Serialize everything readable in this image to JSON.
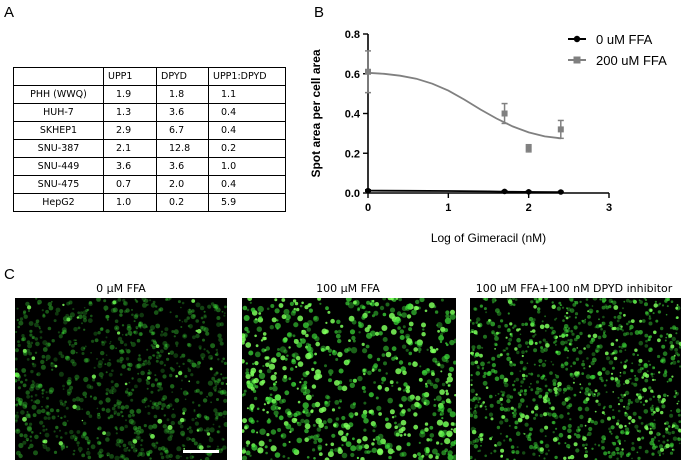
{
  "panels": {
    "a": "A",
    "b": "B",
    "c": "C"
  },
  "table": {
    "columns": [
      "UPP1",
      "DPYD",
      "UPP1:DPYD"
    ],
    "rows": [
      {
        "name": "PHH (WWQ)",
        "values": [
          "1.9",
          "1.8",
          "1.1"
        ]
      },
      {
        "name": "HUH-7",
        "values": [
          "1.3",
          "3.6",
          "0.4"
        ]
      },
      {
        "name": "SKHEP1",
        "values": [
          "2.9",
          "6.7",
          "0.4"
        ]
      },
      {
        "name": "SNU-387",
        "values": [
          "2.1",
          "12.8",
          "0.2"
        ]
      },
      {
        "name": "SNU-449",
        "values": [
          "3.6",
          "3.6",
          "1.0"
        ]
      },
      {
        "name": "SNU-475",
        "values": [
          "0.7",
          "2.0",
          "0.4"
        ]
      },
      {
        "name": "HepG2",
        "values": [
          "1.0",
          "0.2",
          "5.9"
        ]
      }
    ]
  },
  "chart_data": {
    "type": "scatter",
    "xlabel": "Log of Gimeracil (nM)",
    "ylabel": "Spot area per cell area",
    "xlim": [
      0,
      3
    ],
    "ylim": [
      0,
      0.8
    ],
    "x_ticks": [
      "0",
      "1",
      "2",
      "3"
    ],
    "y_ticks": [
      "0.0",
      "0.2",
      "0.4",
      "0.6",
      "0.8"
    ],
    "legend_position": "top-right",
    "series": [
      {
        "name": "0 uM FFA",
        "color": "#000000",
        "marker": "circle",
        "x": [
          0,
          1.7,
          2.0,
          2.4
        ],
        "y": [
          0.012,
          0.008,
          0.006,
          0.005
        ],
        "err": [
          0.004,
          0.003,
          0.003,
          0.003
        ],
        "fit_x": [
          0,
          0.5,
          1,
          1.5,
          1.8,
          2.1,
          2.4
        ],
        "fit_y": [
          0.012,
          0.011,
          0.01,
          0.008,
          0.006,
          0.005,
          0.004
        ]
      },
      {
        "name": "200 uM FFA",
        "color": "#808080",
        "marker": "square",
        "x": [
          0,
          1.7,
          2.0,
          2.4
        ],
        "y": [
          0.61,
          0.4,
          0.225,
          0.32
        ],
        "err": [
          0.105,
          0.05,
          0.018,
          0.045
        ],
        "fit_x": [
          0,
          0.2,
          0.4,
          0.6,
          0.8,
          1.0,
          1.2,
          1.4,
          1.6,
          1.8,
          2.0,
          2.2,
          2.4
        ],
        "fit_y": [
          0.605,
          0.6,
          0.59,
          0.575,
          0.55,
          0.515,
          0.47,
          0.42,
          0.375,
          0.335,
          0.305,
          0.285,
          0.275
        ]
      }
    ]
  },
  "images": [
    {
      "caption": "0 μM FFA"
    },
    {
      "caption": "100 μM FFA"
    },
    {
      "caption": "100 μM FFA+100 nM DPYD inhibitor"
    }
  ],
  "colors": {
    "fluorescence": "#3ee03a",
    "background": "#000000"
  }
}
